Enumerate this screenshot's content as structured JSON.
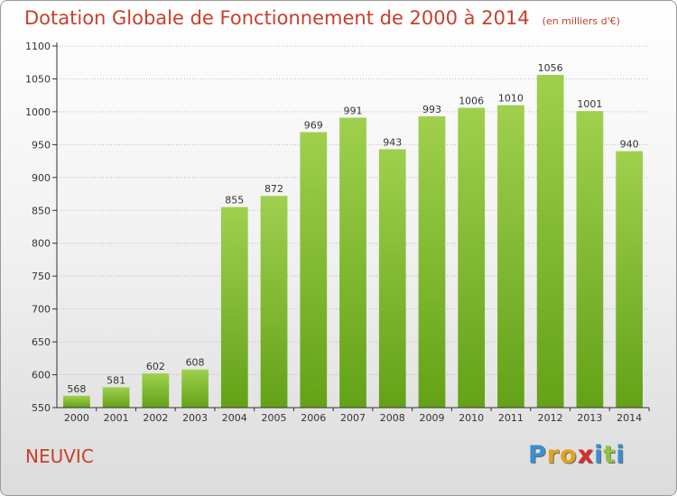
{
  "title": "Dotation Globale de Fonctionnement de 2000 à 2014",
  "unit": "(en milliers d'€)",
  "commune": "NEUVIC",
  "logo": {
    "letters": [
      "P",
      "r",
      "o",
      "x",
      "i",
      "t",
      "i"
    ],
    "colors": [
      "#3b8fd0",
      "#e4a21c",
      "#e4a21c",
      "#d92b2b",
      "#3b8fd0",
      "#8cc43e",
      "#3b8fd0"
    ]
  },
  "colors": {
    "title": "#c8402a",
    "bar_light": "#9fd04e",
    "bar_dark": "#63a217",
    "axis": "#333333",
    "grid": "#bbbbbb"
  },
  "chart_data": {
    "type": "bar",
    "categories": [
      "2000",
      "2001",
      "2002",
      "2003",
      "2004",
      "2005",
      "2006",
      "2007",
      "2008",
      "2009",
      "2010",
      "2011",
      "2012",
      "2013",
      "2014"
    ],
    "values": [
      568,
      581,
      602,
      608,
      855,
      872,
      969,
      991,
      943,
      993,
      1006,
      1010,
      1056,
      1001,
      940
    ],
    "ylim": [
      550,
      1100
    ],
    "yticks": [
      550,
      600,
      650,
      700,
      750,
      800,
      850,
      900,
      950,
      1000,
      1050,
      1100
    ],
    "grid": true,
    "data_labels": true
  }
}
